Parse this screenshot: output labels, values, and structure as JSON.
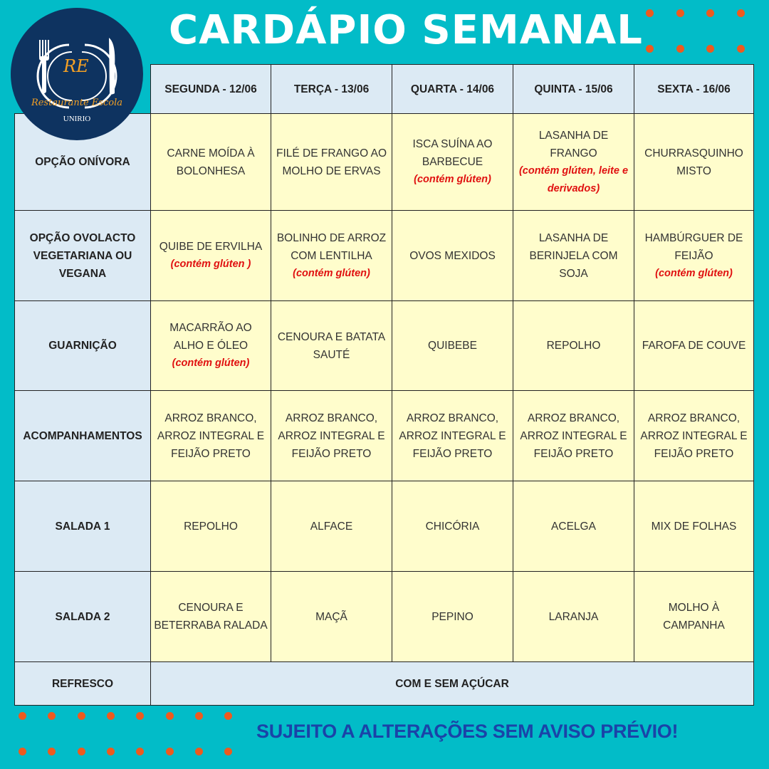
{
  "title": "CARDÁPIO SEMANAL",
  "logo": {
    "initials": "RE",
    "name": "Restaurante Escola",
    "institution": "UNIRIO"
  },
  "days": [
    "SEGUNDA - 12/06",
    "TERÇA - 13/06",
    "QUARTA - 14/06",
    "QUINTA - 15/06",
    "SEXTA - 16/06"
  ],
  "rows": [
    {
      "label": "OPÇÃO ONÍVORA",
      "cells": [
        {
          "text": "CARNE MOÍDA À BOLONHESA",
          "note": ""
        },
        {
          "text": "FILÉ DE FRANGO AO MOLHO DE ERVAS",
          "note": ""
        },
        {
          "text": "ISCA SUÍNA AO BARBECUE",
          "note": "(contém glúten)"
        },
        {
          "text": "LASANHA DE FRANGO",
          "note": "(contém glúten, leite e derivados)"
        },
        {
          "text": "CHURRASQUINHO MISTO",
          "note": ""
        }
      ]
    },
    {
      "label": "OPÇÃO OVOLACTO VEGETARIANA OU VEGANA",
      "cells": [
        {
          "text": "QUIBE DE ERVILHA",
          "note": "(contém glúten )"
        },
        {
          "text": "BOLINHO DE ARROZ COM LENTILHA",
          "note": "(contém glúten)"
        },
        {
          "text": "OVOS MEXIDOS",
          "note": ""
        },
        {
          "text": "LASANHA DE BERINJELA COM SOJA",
          "note": ""
        },
        {
          "text": "HAMBÚRGUER DE FEIJÃO",
          "note": "(contém glúten)"
        }
      ]
    },
    {
      "label": "GUARNIÇÃO",
      "cells": [
        {
          "text": "MACARRÃO AO ALHO E ÓLEO",
          "note": "(contém glúten)"
        },
        {
          "text": "CENOURA E BATATA SAUTÉ",
          "note": ""
        },
        {
          "text": "QUIBEBE",
          "note": ""
        },
        {
          "text": "REPOLHO",
          "note": ""
        },
        {
          "text": "FAROFA DE COUVE",
          "note": ""
        }
      ]
    },
    {
      "label": "ACOMPANHAMENTOS",
      "cells": [
        {
          "text": "ARROZ BRANCO, ARROZ INTEGRAL E FEIJÃO PRETO",
          "note": ""
        },
        {
          "text": "ARROZ BRANCO, ARROZ INTEGRAL E FEIJÃO PRETO",
          "note": ""
        },
        {
          "text": "ARROZ BRANCO, ARROZ INTEGRAL E FEIJÃO PRETO",
          "note": ""
        },
        {
          "text": "ARROZ BRANCO, ARROZ INTEGRAL E FEIJÃO PRETO",
          "note": ""
        },
        {
          "text": "ARROZ BRANCO, ARROZ INTEGRAL E FEIJÃO PRETO",
          "note": ""
        }
      ]
    },
    {
      "label": "SALADA 1",
      "cells": [
        {
          "text": "REPOLHO",
          "note": ""
        },
        {
          "text": "ALFACE",
          "note": ""
        },
        {
          "text": "CHICÓRIA",
          "note": ""
        },
        {
          "text": "ACELGA",
          "note": ""
        },
        {
          "text": "MIX DE FOLHAS",
          "note": ""
        }
      ]
    },
    {
      "label": "SALADA 2",
      "cells": [
        {
          "text": "CENOURA E BETERRABA RALADA",
          "note": ""
        },
        {
          "text": "MAÇÃ",
          "note": ""
        },
        {
          "text": "PEPINO",
          "note": ""
        },
        {
          "text": "LARANJA",
          "note": ""
        },
        {
          "text": "MOLHO À CAMPANHA",
          "note": ""
        }
      ]
    }
  ],
  "refresco": {
    "label": "REFRESCO",
    "value": "COM E SEM AÇÚCAR"
  },
  "notice": "SUJEITO A ALTERAÇÕES SEM AVISO PRÉVIO!",
  "colors": {
    "background": "#02BCC8",
    "dots": "#EE5A1E",
    "header": "#DCEAF4",
    "cell": "#FFFDCC",
    "allergen": "#E01010",
    "notice": "#1A43A8",
    "logo": "#0E3360"
  }
}
